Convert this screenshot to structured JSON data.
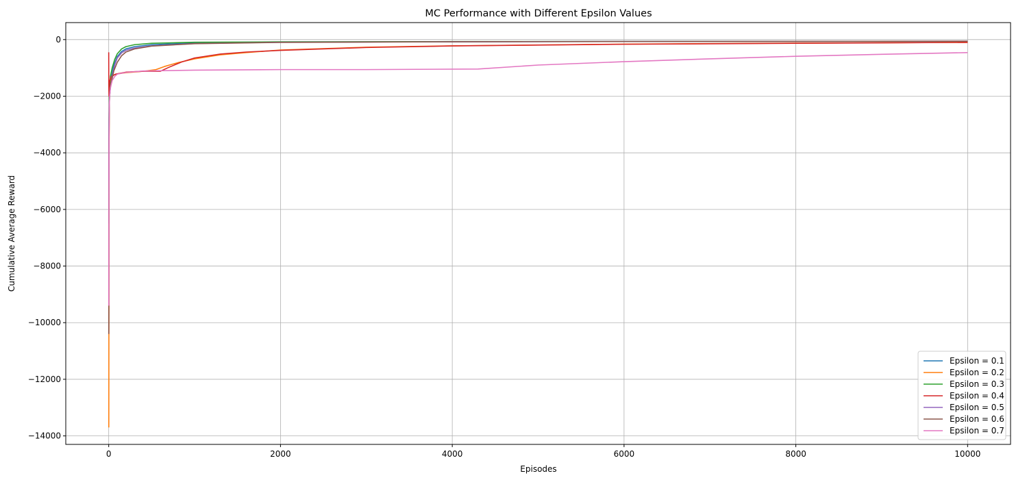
{
  "chart_data": {
    "type": "line",
    "title": "MC Performance with Different Epsilon Values",
    "xlabel": "Episodes",
    "ylabel": "Cumulative Average Reward",
    "xlim": [
      -500,
      10500
    ],
    "ylim": [
      -14300,
      600
    ],
    "xticks": [
      0,
      2000,
      4000,
      6000,
      8000,
      10000
    ],
    "xtick_labels": [
      "0",
      "2000",
      "4000",
      "6000",
      "8000",
      "10000"
    ],
    "yticks": [
      0,
      -2000,
      -4000,
      -6000,
      -8000,
      -10000,
      -12000,
      -14000
    ],
    "ytick_labels": [
      "0",
      "−2000",
      "−4000",
      "−6000",
      "−8000",
      "−10000",
      "−12000",
      "−14000"
    ],
    "grid": true,
    "legend_position": "bottom-right",
    "series": [
      {
        "name": "Epsilon = 0.1",
        "color": "#1f77b4",
        "points": [
          [
            1,
            -6500
          ],
          [
            3,
            -3000
          ],
          [
            6,
            -2000
          ],
          [
            10,
            -1700
          ],
          [
            20,
            -1450
          ],
          [
            40,
            -1200
          ],
          [
            60,
            -900
          ],
          [
            100,
            -600
          ],
          [
            150,
            -420
          ],
          [
            200,
            -330
          ],
          [
            300,
            -250
          ],
          [
            500,
            -180
          ],
          [
            1000,
            -120
          ],
          [
            2000,
            -90
          ],
          [
            4000,
            -75
          ],
          [
            6000,
            -68
          ],
          [
            8000,
            -63
          ],
          [
            10000,
            -60
          ]
        ]
      },
      {
        "name": "Epsilon = 0.2",
        "color": "#ff7f0e",
        "points": [
          [
            1,
            -13700
          ],
          [
            2,
            -11000
          ],
          [
            4,
            -4000
          ],
          [
            8,
            -2000
          ],
          [
            15,
            -1500
          ],
          [
            30,
            -1350
          ],
          [
            60,
            -1250
          ],
          [
            100,
            -1210
          ],
          [
            200,
            -1170
          ],
          [
            400,
            -1120
          ],
          [
            550,
            -1060
          ],
          [
            650,
            -950
          ],
          [
            800,
            -820
          ],
          [
            1000,
            -680
          ],
          [
            1300,
            -540
          ],
          [
            1600,
            -460
          ],
          [
            2000,
            -370
          ],
          [
            3000,
            -270
          ],
          [
            4000,
            -220
          ],
          [
            6000,
            -160
          ],
          [
            8000,
            -125
          ],
          [
            10000,
            -100
          ]
        ]
      },
      {
        "name": "Epsilon = 0.3",
        "color": "#2ca02c",
        "points": [
          [
            1,
            -5000
          ],
          [
            3,
            -2800
          ],
          [
            6,
            -2000
          ],
          [
            10,
            -1700
          ],
          [
            20,
            -1300
          ],
          [
            40,
            -1000
          ],
          [
            70,
            -700
          ],
          [
            100,
            -500
          ],
          [
            150,
            -330
          ],
          [
            200,
            -250
          ],
          [
            300,
            -180
          ],
          [
            500,
            -130
          ],
          [
            1000,
            -95
          ],
          [
            2000,
            -80
          ],
          [
            4000,
            -70
          ],
          [
            6000,
            -65
          ],
          [
            8000,
            -62
          ],
          [
            10000,
            -60
          ]
        ]
      },
      {
        "name": "Epsilon = 0.4",
        "color": "#d62728",
        "points": [
          [
            0,
            -450
          ],
          [
            1,
            -1600
          ],
          [
            3,
            -2000
          ],
          [
            6,
            -1700
          ],
          [
            12,
            -1450
          ],
          [
            30,
            -1300
          ],
          [
            80,
            -1220
          ],
          [
            200,
            -1150
          ],
          [
            400,
            -1120
          ],
          [
            600,
            -1120
          ],
          [
            700,
            -980
          ],
          [
            850,
            -790
          ],
          [
            1000,
            -650
          ],
          [
            1300,
            -510
          ],
          [
            1600,
            -440
          ],
          [
            2000,
            -380
          ],
          [
            3000,
            -280
          ],
          [
            4000,
            -225
          ],
          [
            6000,
            -165
          ],
          [
            8000,
            -130
          ],
          [
            10000,
            -100
          ]
        ]
      },
      {
        "name": "Epsilon = 0.5",
        "color": "#9467bd",
        "points": [
          [
            1,
            -5000
          ],
          [
            3,
            -3000
          ],
          [
            6,
            -2300
          ],
          [
            10,
            -2000
          ],
          [
            20,
            -1700
          ],
          [
            40,
            -1300
          ],
          [
            70,
            -900
          ],
          [
            100,
            -650
          ],
          [
            150,
            -470
          ],
          [
            200,
            -380
          ],
          [
            300,
            -300
          ],
          [
            500,
            -220
          ],
          [
            1000,
            -140
          ],
          [
            2000,
            -95
          ],
          [
            4000,
            -75
          ],
          [
            6000,
            -67
          ],
          [
            8000,
            -62
          ],
          [
            10000,
            -58
          ]
        ]
      },
      {
        "name": "Epsilon = 0.6",
        "color": "#8c564b",
        "points": [
          [
            1,
            -10400
          ],
          [
            2,
            -9400
          ],
          [
            4,
            -3500
          ],
          [
            8,
            -2200
          ],
          [
            15,
            -1800
          ],
          [
            30,
            -1500
          ],
          [
            60,
            -1100
          ],
          [
            100,
            -800
          ],
          [
            150,
            -570
          ],
          [
            200,
            -440
          ],
          [
            300,
            -330
          ],
          [
            500,
            -230
          ],
          [
            1000,
            -145
          ],
          [
            2000,
            -100
          ],
          [
            4000,
            -78
          ],
          [
            6000,
            -68
          ],
          [
            8000,
            -63
          ],
          [
            10000,
            -58
          ]
        ]
      },
      {
        "name": "Epsilon = 0.7",
        "color": "#e377c2",
        "points": [
          [
            1,
            -9400
          ],
          [
            3,
            -4000
          ],
          [
            6,
            -2500
          ],
          [
            10,
            -2000
          ],
          [
            20,
            -1700
          ],
          [
            40,
            -1450
          ],
          [
            70,
            -1300
          ],
          [
            100,
            -1220
          ],
          [
            200,
            -1160
          ],
          [
            400,
            -1110
          ],
          [
            1000,
            -1080
          ],
          [
            2000,
            -1060
          ],
          [
            3000,
            -1060
          ],
          [
            4300,
            -1040
          ],
          [
            5000,
            -900
          ],
          [
            6000,
            -780
          ],
          [
            7000,
            -680
          ],
          [
            8000,
            -590
          ],
          [
            9000,
            -520
          ],
          [
            10000,
            -460
          ]
        ]
      }
    ]
  }
}
